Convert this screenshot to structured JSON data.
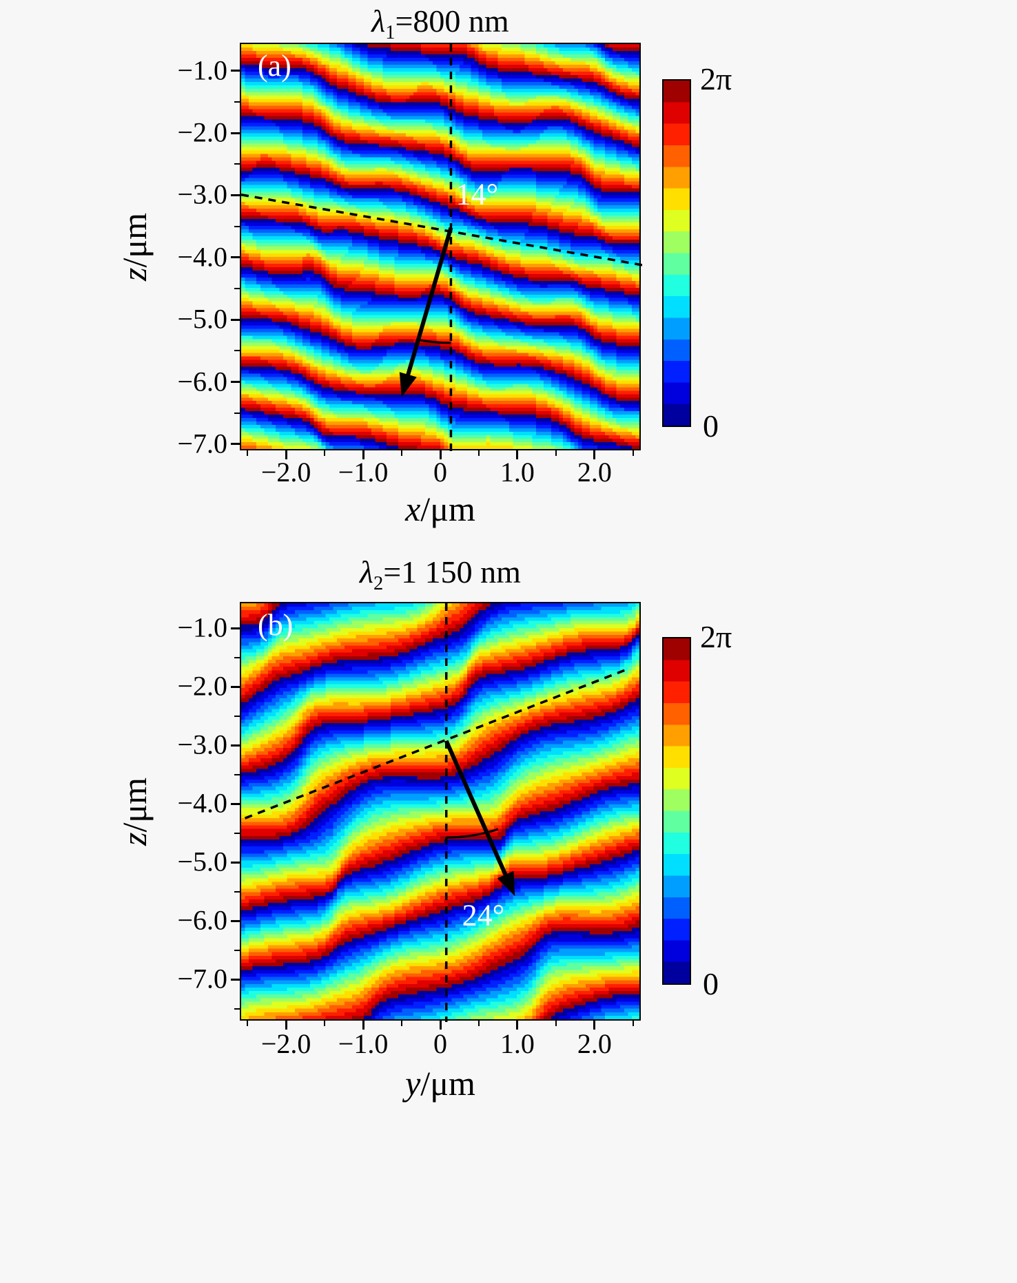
{
  "figure": {
    "background": "#f7f7f7"
  },
  "colors": {
    "annotation": "#000000",
    "angle_text": "#ffffff",
    "panel_letter": "#ffffff"
  },
  "chart_data": {
    "type": "heatmap",
    "description": "Spatial phase maps (phase mod 2π, jet colormap) of two beams; dashed lines mark the tilted wavefront and vertical axis, arrows show deflected propagation direction with the deflection angle labeled.",
    "colormap": "jet",
    "levels": 16,
    "value_min_label": "0",
    "value_max_label": "2π",
    "panels": [
      {
        "id": "a",
        "corner_label": "(a)",
        "title": {
          "symbol": "λ",
          "sub": "1",
          "rest": "=800 nm"
        },
        "xlabel": {
          "var": "x",
          "rest": "/μm"
        },
        "ylabel": {
          "var": "z",
          "rest": "/μm"
        },
        "x_range": [
          -2.6,
          2.6
        ],
        "z_range": [
          -0.55,
          -7.1
        ],
        "x_ticks": [
          {
            "v": -2,
            "label": "−2.0"
          },
          {
            "v": -1,
            "label": "−1.0"
          },
          {
            "v": 0,
            "label": "0"
          },
          {
            "v": 1,
            "label": "1.0"
          },
          {
            "v": 2,
            "label": "2.0"
          }
        ],
        "z_ticks": [
          {
            "v": -1,
            "label": "−1.0"
          },
          {
            "v": -2,
            "label": "−2.0"
          },
          {
            "v": -3,
            "label": "−3.0"
          },
          {
            "v": -4,
            "label": "−4.0"
          },
          {
            "v": -5,
            "label": "−5.0"
          },
          {
            "v": -6,
            "label": "−6.0"
          },
          {
            "v": -7,
            "label": "−7.0"
          }
        ],
        "colorbar": {
          "top": "2π",
          "bottom": "0"
        },
        "beam": {
          "angle_deg": 14,
          "angle_label": "14°",
          "angle_label_pos": [
            0.46,
            -3.12
          ],
          "pivot": [
            0.12,
            -3.5
          ],
          "arrow_tip": [
            -0.52,
            -6.22
          ],
          "vertical_line_x": 0.12,
          "wavefront_line": [
            [
              -2.6,
              -2.97
            ],
            [
              2.6,
              -4.1
            ]
          ],
          "arc": {
            "radius": 1.85,
            "from_deg": -14,
            "to_deg": 0
          }
        },
        "fringes": {
          "period_um": 0.78,
          "waves": [
            {
              "theta_deg": -14,
              "amp": 1.0,
              "phase": 0.5
            },
            {
              "theta_deg": 12,
              "amp": 0.42,
              "phase": 2.6
            },
            {
              "theta_deg": -42,
              "amp": 0.27,
              "phase": 5.1
            },
            {
              "theta_deg": 48,
              "amp": 0.16,
              "phase": 1.1
            }
          ]
        }
      },
      {
        "id": "b",
        "corner_label": "(b)",
        "title": {
          "symbol": "λ",
          "sub": "2",
          "rest": "=1 150 nm"
        },
        "xlabel": {
          "var": "y",
          "rest": "/μm"
        },
        "ylabel": {
          "var": "z",
          "rest": "/μm"
        },
        "x_range": [
          -2.6,
          2.6
        ],
        "z_range": [
          -0.55,
          -7.7
        ],
        "x_ticks": [
          {
            "v": -2,
            "label": "−2.0"
          },
          {
            "v": -1,
            "label": "−1.0"
          },
          {
            "v": 0,
            "label": "0"
          },
          {
            "v": 1,
            "label": "1.0"
          },
          {
            "v": 2,
            "label": "2.0"
          }
        ],
        "z_ticks": [
          {
            "v": -1,
            "label": "−1.0"
          },
          {
            "v": -2,
            "label": "−2.0"
          },
          {
            "v": -3,
            "label": "−3.0"
          },
          {
            "v": -4,
            "label": "−4.0"
          },
          {
            "v": -5,
            "label": "−5.0"
          },
          {
            "v": -6,
            "label": "−6.0"
          },
          {
            "v": -7,
            "label": "−7.0"
          }
        ],
        "colorbar": {
          "top": "2π",
          "bottom": "0"
        },
        "beam": {
          "angle_deg": 24,
          "angle_label": "24°",
          "angle_label_pos": [
            0.54,
            -6.05
          ],
          "pivot": [
            0.06,
            -2.9
          ],
          "arrow_tip": [
            0.95,
            -5.55
          ],
          "vertical_line_x": 0.06,
          "wavefront_line": [
            [
              -2.55,
              -4.22
            ],
            [
              2.4,
              -1.68
            ]
          ],
          "arc": {
            "radius": 1.65,
            "from_deg": 0,
            "to_deg": 24
          }
        },
        "fringes": {
          "period_um": 1.12,
          "waves": [
            {
              "theta_deg": 24,
              "amp": 1.0,
              "phase": 1.2
            },
            {
              "theta_deg": -4,
              "amp": 0.5,
              "phase": 4.4
            },
            {
              "theta_deg": 58,
              "amp": 0.22,
              "phase": 0.3
            },
            {
              "theta_deg": -48,
              "amp": 0.16,
              "phase": 3.3
            }
          ]
        }
      }
    ]
  }
}
